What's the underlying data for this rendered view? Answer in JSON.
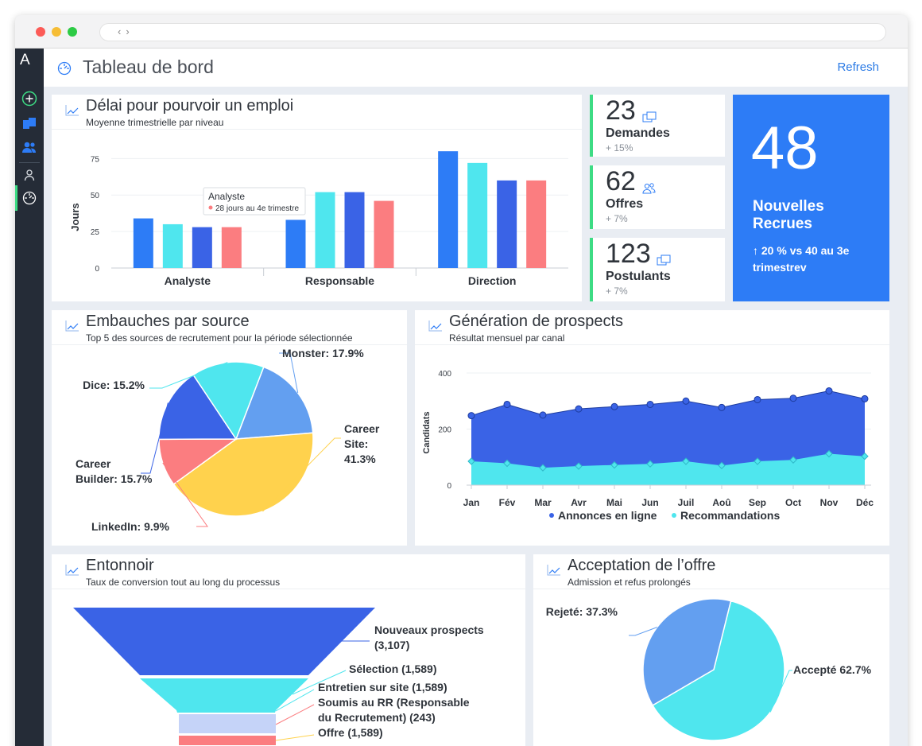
{
  "app": {
    "title": "Tableau de bord",
    "refresh_label": "Refresh",
    "logo": "A",
    "rail_icons": [
      "add-icon",
      "briefcase-icon",
      "team-icon",
      "person-icon",
      "dashboard-icon"
    ]
  },
  "colors": {
    "blue": "#2d7cf6",
    "cyan": "#4fe6ee",
    "indigo": "#3a63e6",
    "salmon": "#fb7d80",
    "yellow": "#ffd24d",
    "lightblue": "#639ff0",
    "green": "#3ddc84",
    "rail": "#252c37"
  },
  "kpis": [
    {
      "value": "23",
      "label": "Demandes",
      "change": "+ 15%",
      "icon": "folder-icon"
    },
    {
      "value": "62",
      "label": "Offres",
      "change": "+ 7%",
      "icon": "people-icon"
    },
    {
      "value": "123",
      "label": "Postulants",
      "change": "+ 7%",
      "icon": "folder-icon"
    }
  ],
  "big_kpi": {
    "value": "48",
    "title": "Nouvelles Recrues",
    "sub": "↑ 20 % vs 40 au 3e trimestrev"
  },
  "time_to_fill": {
    "title": "Délai pour pourvoir un emploi",
    "subtitle": "Moyenne trimestrielle par niveau",
    "tooltip": {
      "title": "Analyste",
      "text": "28 jours au 4e trimestre"
    },
    "chart_data": {
      "type": "bar",
      "categories": [
        "Analyste",
        "Responsable",
        "Direction"
      ],
      "series": [
        {
          "values": [
            34,
            33,
            80
          ],
          "color": "#2d7cf6"
        },
        {
          "values": [
            30,
            52,
            72
          ],
          "color": "#4fe6ee"
        },
        {
          "values": [
            28,
            52,
            60
          ],
          "color": "#3a63e6"
        },
        {
          "values": [
            28,
            46,
            60
          ],
          "color": "#fb7d80"
        }
      ],
      "ylabel": "Jours",
      "yticks": [
        "0",
        "25",
        "50",
        "75"
      ],
      "ylim": [
        0,
        85
      ]
    }
  },
  "sources": {
    "title": "Embauches par source",
    "subtitle": "Top 5 des sources de recrutement pour la période sélectionnée",
    "chart_data": {
      "type": "pie",
      "slices": [
        {
          "label": "Monster: 17.9%",
          "value": 17.9,
          "color": "#639ff0"
        },
        {
          "label": "Career Site: 41.3%",
          "value": 41.3,
          "color": "#ffd24d"
        },
        {
          "label": "LinkedIn: 9.9%",
          "value": 9.9,
          "color": "#fb7d80"
        },
        {
          "label": "Career Builder: 15.7%",
          "value": 15.7,
          "color": "#3a63e6"
        },
        {
          "label": "Dice: 15.2%",
          "value": 15.2,
          "color": "#4fe6ee"
        }
      ]
    }
  },
  "leads": {
    "title": "Génération de prospects",
    "subtitle": "Résultat mensuel par canal",
    "chart_data": {
      "type": "area",
      "x": [
        "Jan",
        "Fév",
        "Mar",
        "Avr",
        "Mai",
        "Jun",
        "Juil",
        "Aoû",
        "Sep",
        "Oct",
        "Nov",
        "Déc"
      ],
      "series": [
        {
          "name": "Annonces en ligne",
          "values": [
            248,
            288,
            250,
            272,
            280,
            288,
            300,
            277,
            305,
            310,
            336,
            308
          ],
          "color": "#3a63e6"
        },
        {
          "name": "Recommandations",
          "values": [
            85,
            78,
            62,
            68,
            72,
            76,
            85,
            70,
            85,
            90,
            112,
            103
          ],
          "color": "#4fe6ee"
        }
      ],
      "ylabel": "Candidats",
      "yticks": [
        "0",
        "200",
        "400"
      ],
      "ylim": [
        0,
        400
      ]
    }
  },
  "funnel": {
    "title": "Entonnoir",
    "subtitle": "Taux de conversion tout au long du processus",
    "chart_data": {
      "type": "funnel",
      "stages": [
        {
          "label": "Nouveaux prospects (3,107)",
          "value": 3107,
          "color": "#3a63e6"
        },
        {
          "label": "Sélection (1,589)",
          "value": 1589,
          "color": "#4fe6ee"
        },
        {
          "label": "Entretien sur site (1,589)",
          "value": 1589,
          "color": "#4fe6ee"
        },
        {
          "label": "Soumis au RR (Responsable du Recrutement) (243)",
          "value": 243,
          "color": "#c5d3f8"
        },
        {
          "label": "Offre (1,589)",
          "value": 1589,
          "color": "#fb7d80"
        }
      ]
    }
  },
  "acceptance": {
    "title": "Acceptation de l’offre",
    "subtitle": "Admission et refus prolongés",
    "chart_data": {
      "type": "pie",
      "slices": [
        {
          "label": "Accepté 62.7%",
          "value": 62.7,
          "color": "#4fe6ee"
        },
        {
          "label": "Rejeté: 37.3%",
          "value": 37.3,
          "color": "#639ff0"
        }
      ]
    }
  }
}
